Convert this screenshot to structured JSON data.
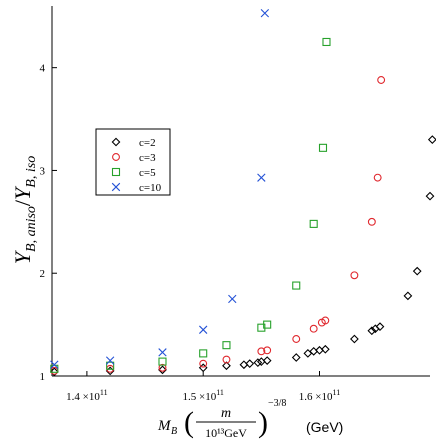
{
  "chart_data": {
    "type": "scatter",
    "xlim": [
      137000000000.0,
      169500000000.0
    ],
    "ylim": [
      1.0,
      4.6
    ],
    "x_ticks": [
      {
        "value": 140000000000.0,
        "mantissa": "1.4",
        "base": "×10",
        "exp": "11"
      },
      {
        "value": 150000000000.0,
        "mantissa": "1.5",
        "base": "×10",
        "exp": "11"
      },
      {
        "value": 160000000000.0,
        "mantissa": "1.6",
        "base": "×10",
        "exp": "11"
      }
    ],
    "y_ticks": [
      {
        "value": 1,
        "label": "1"
      },
      {
        "value": 2,
        "label": "2"
      },
      {
        "value": 3,
        "label": "3"
      },
      {
        "value": 4,
        "label": "4"
      }
    ],
    "xlabel": {
      "prefix": "M",
      "sub": "B",
      "frac_num": "m",
      "frac_den": "10¹³GeV",
      "exp": "−3/8",
      "unit": "(GeV)"
    },
    "ylabel": {
      "Y1": "Y",
      "sub1": "B, aniso",
      "slash": "/",
      "Y2": "Y",
      "sub2": "B, iso"
    },
    "grid": false,
    "legend_position": "upper-left",
    "series": [
      {
        "name": "c=2",
        "marker": "diamond",
        "color": "#000000",
        "points": [
          [
            137200000000.0,
            1.04
          ],
          [
            142000000000.0,
            1.05
          ],
          [
            146500000000.0,
            1.06
          ],
          [
            150000000000.0,
            1.08
          ],
          [
            152000000000.0,
            1.1
          ],
          [
            153500000000.0,
            1.11
          ],
          [
            154000000000.0,
            1.12
          ],
          [
            154700000000.0,
            1.13
          ],
          [
            155000000000.0,
            1.14
          ],
          [
            155500000000.0,
            1.15
          ],
          [
            158000000000.0,
            1.18
          ],
          [
            159000000000.0,
            1.22
          ],
          [
            159500000000.0,
            1.24
          ],
          [
            160000000000.0,
            1.25
          ],
          [
            160500000000.0,
            1.26
          ],
          [
            163000000000.0,
            1.36
          ],
          [
            164500000000.0,
            1.44
          ],
          [
            164800000000.0,
            1.46
          ],
          [
            165200000000.0,
            1.48
          ],
          [
            167600000000.0,
            1.78
          ],
          [
            168400000000.0,
            2.02
          ],
          [
            169500000000.0,
            2.75
          ],
          [
            169700000000.0,
            3.3
          ]
        ]
      },
      {
        "name": "c=3",
        "marker": "circle",
        "color": "#e0282e",
        "points": [
          [
            137200000000.0,
            1.05
          ],
          [
            142000000000.0,
            1.07
          ],
          [
            146500000000.0,
            1.08
          ],
          [
            150000000000.0,
            1.12
          ],
          [
            152000000000.0,
            1.16
          ],
          [
            155000000000.0,
            1.24
          ],
          [
            155500000000.0,
            1.25
          ],
          [
            158000000000.0,
            1.36
          ],
          [
            159500000000.0,
            1.46
          ],
          [
            160200000000.0,
            1.52
          ],
          [
            160500000000.0,
            1.54
          ],
          [
            163000000000.0,
            1.98
          ],
          [
            164500000000.0,
            2.5
          ],
          [
            165000000000.0,
            2.93
          ],
          [
            165300000000.0,
            3.88
          ]
        ]
      },
      {
        "name": "c=5",
        "marker": "square",
        "color": "#27a12b",
        "points": [
          [
            137200000000.0,
            1.07
          ],
          [
            142000000000.0,
            1.1
          ],
          [
            146500000000.0,
            1.14
          ],
          [
            150000000000.0,
            1.22
          ],
          [
            152000000000.0,
            1.3
          ],
          [
            155000000000.0,
            1.47
          ],
          [
            155500000000.0,
            1.5
          ],
          [
            158000000000.0,
            1.88
          ],
          [
            159500000000.0,
            2.48
          ],
          [
            160300000000.0,
            3.22
          ],
          [
            160600000000.0,
            4.25
          ]
        ]
      },
      {
        "name": "c=10",
        "marker": "cross",
        "color": "#2452d6",
        "points": [
          [
            137200000000.0,
            1.11
          ],
          [
            142000000000.0,
            1.15
          ],
          [
            146500000000.0,
            1.23
          ],
          [
            150000000000.0,
            1.45
          ],
          [
            152500000000.0,
            1.75
          ],
          [
            155000000000.0,
            2.93
          ],
          [
            155300000000.0,
            4.53
          ]
        ]
      }
    ]
  }
}
